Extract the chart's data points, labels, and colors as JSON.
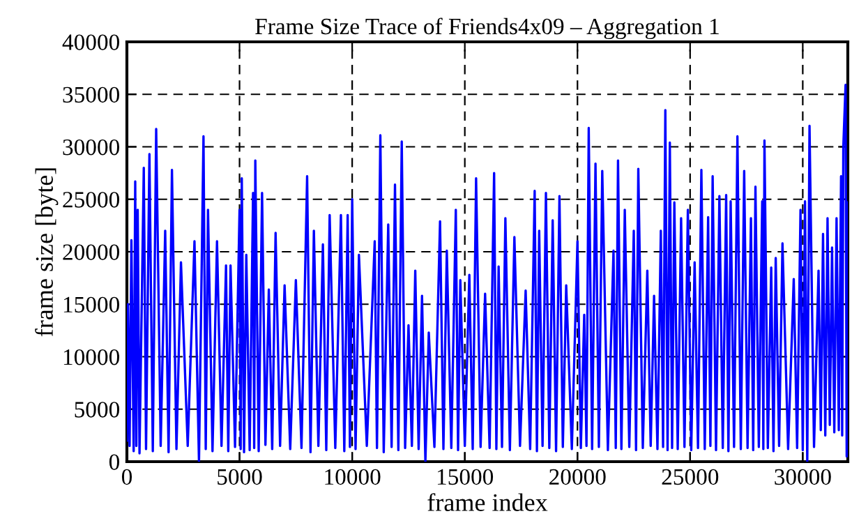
{
  "chart_data": {
    "type": "line",
    "title": "Frame Size Trace of Friends4x09 – Aggregation 1",
    "xlabel": "frame index",
    "ylabel": "frame size [byte]",
    "series": [
      {
        "color": "#0000ff",
        "x": [
          0,
          50,
          120,
          200,
          300,
          370,
          420,
          480,
          560,
          750,
          850,
          1000,
          1150,
          1300,
          1500,
          1700,
          1850,
          2000,
          2200,
          2400,
          2700,
          3000,
          3200,
          3400,
          3500,
          3600,
          3800,
          4000,
          4200,
          4400,
          4500,
          4600,
          4800,
          5000,
          5050,
          5100,
          5200,
          5300,
          5450,
          5600,
          5650,
          5700,
          5850,
          6000,
          6150,
          6300,
          6450,
          6600,
          6800,
          7000,
          7250,
          7500,
          7750,
          8000,
          8150,
          8300,
          8500,
          8700,
          8850,
          9000,
          9250,
          9500,
          9650,
          9800,
          9900,
          10000,
          10150,
          10300,
          10650,
          11000,
          11100,
          11250,
          11400,
          11600,
          11750,
          11900,
          12050,
          12200,
          12350,
          12500,
          12650,
          12800,
          12950,
          13100,
          13250,
          13400,
          13650,
          13900,
          14050,
          14200,
          14400,
          14600,
          14700,
          14800,
          15000,
          15200,
          15350,
          15500,
          15700,
          15900,
          16100,
          16300,
          16400,
          16500,
          16650,
          16800,
          17000,
          17200,
          17450,
          17700,
          17900,
          18100,
          18200,
          18300,
          18450,
          18600,
          18750,
          18900,
          19050,
          19200,
          19350,
          19500,
          19750,
          20000,
          20150,
          20300,
          20400,
          20500,
          20650,
          20800,
          20950,
          21100,
          21350,
          21600,
          21700,
          21800,
          21950,
          22100,
          22300,
          22500,
          22600,
          22700,
          22900,
          23100,
          23250,
          23400,
          23550,
          23700,
          23800,
          23900,
          24000,
          24100,
          24200,
          24300,
          24450,
          24600,
          24750,
          24900,
          25050,
          25200,
          25350,
          25500,
          25650,
          25800,
          25900,
          26000,
          26150,
          26300,
          26450,
          26600,
          26700,
          26800,
          26950,
          27100,
          27250,
          27400,
          27550,
          27700,
          27800,
          27900,
          28050,
          28200,
          28250,
          28300,
          28450,
          28600,
          28700,
          28800,
          28950,
          29100,
          29350,
          29600,
          29750,
          29900,
          30000,
          30100,
          30200,
          30300,
          30500,
          30700,
          30800,
          30900,
          31000,
          31100,
          31200,
          31300,
          31400,
          31500,
          31600,
          31700,
          31750,
          31800,
          31900,
          31950,
          32000
        ],
        "values": [
          2000,
          15000,
          1500,
          21100,
          1000,
          26700,
          1500,
          24000,
          800,
          28000,
          1200,
          29300,
          1000,
          31700,
          1500,
          22000,
          900,
          27800,
          1200,
          19000,
          1500,
          21000,
          0,
          31000,
          1200,
          24000,
          1000,
          21000,
          1500,
          18700,
          1000,
          18700,
          1400,
          24000,
          1200,
          27000,
          900,
          19700,
          1100,
          25600,
          1300,
          28700,
          1000,
          25600,
          1600,
          16400,
          1200,
          21800,
          1500,
          16800,
          1200,
          17300,
          1300,
          27200,
          900,
          22000,
          1500,
          20700,
          1100,
          23500,
          1300,
          23500,
          1000,
          23500,
          1400,
          25000,
          1200,
          19700,
          1500,
          21000,
          1300,
          31100,
          900,
          22600,
          1400,
          26400,
          1100,
          30500,
          1300,
          13000,
          1500,
          18200,
          1200,
          15800,
          0,
          12300,
          1400,
          22900,
          1200,
          20100,
          1300,
          24000,
          1100,
          17300,
          1500,
          17800,
          1200,
          27000,
          1400,
          16000,
          1300,
          27500,
          1200,
          18600,
          1400,
          23200,
          1100,
          21400,
          1500,
          16300,
          1200,
          25800,
          1000,
          22000,
          1500,
          25600,
          1300,
          23000,
          1000,
          25300,
          1400,
          16800,
          1200,
          21000,
          1300,
          14000,
          1500,
          31800,
          1200,
          28400,
          1400,
          27700,
          1100,
          20100,
          1300,
          28700,
          1200,
          24000,
          1400,
          22000,
          1100,
          27900,
          1300,
          18200,
          1500,
          15800,
          1200,
          22000,
          1400,
          33500,
          1100,
          30400,
          1300,
          24700,
          1200,
          23200,
          1400,
          24000,
          1100,
          19000,
          1300,
          27800,
          1200,
          23300,
          1500,
          27200,
          1100,
          25300,
          1300,
          25400,
          1000,
          24800,
          1400,
          31000,
          1200,
          27700,
          1300,
          23200,
          1100,
          26200,
          1400,
          24800,
          1200,
          30600,
          1300,
          18500,
          1000,
          19400,
          1500,
          20800,
          1200,
          17400,
          1300,
          24000,
          1100,
          24800,
          0,
          32000,
          1400,
          18200,
          3000,
          21700,
          2500,
          23200,
          3500,
          20400,
          2800,
          23200,
          3000,
          27200,
          2500,
          30000,
          35900,
          500,
          24700
        ]
      }
    ],
    "xlim": [
      0,
      32000
    ],
    "ylim": [
      0,
      40000
    ],
    "xticks": [
      0,
      5000,
      10000,
      15000,
      20000,
      25000,
      30000
    ],
    "yticks": [
      0,
      5000,
      10000,
      15000,
      20000,
      25000,
      30000,
      35000,
      40000
    ],
    "grid": true,
    "line_style": "solid",
    "marker": "none"
  }
}
